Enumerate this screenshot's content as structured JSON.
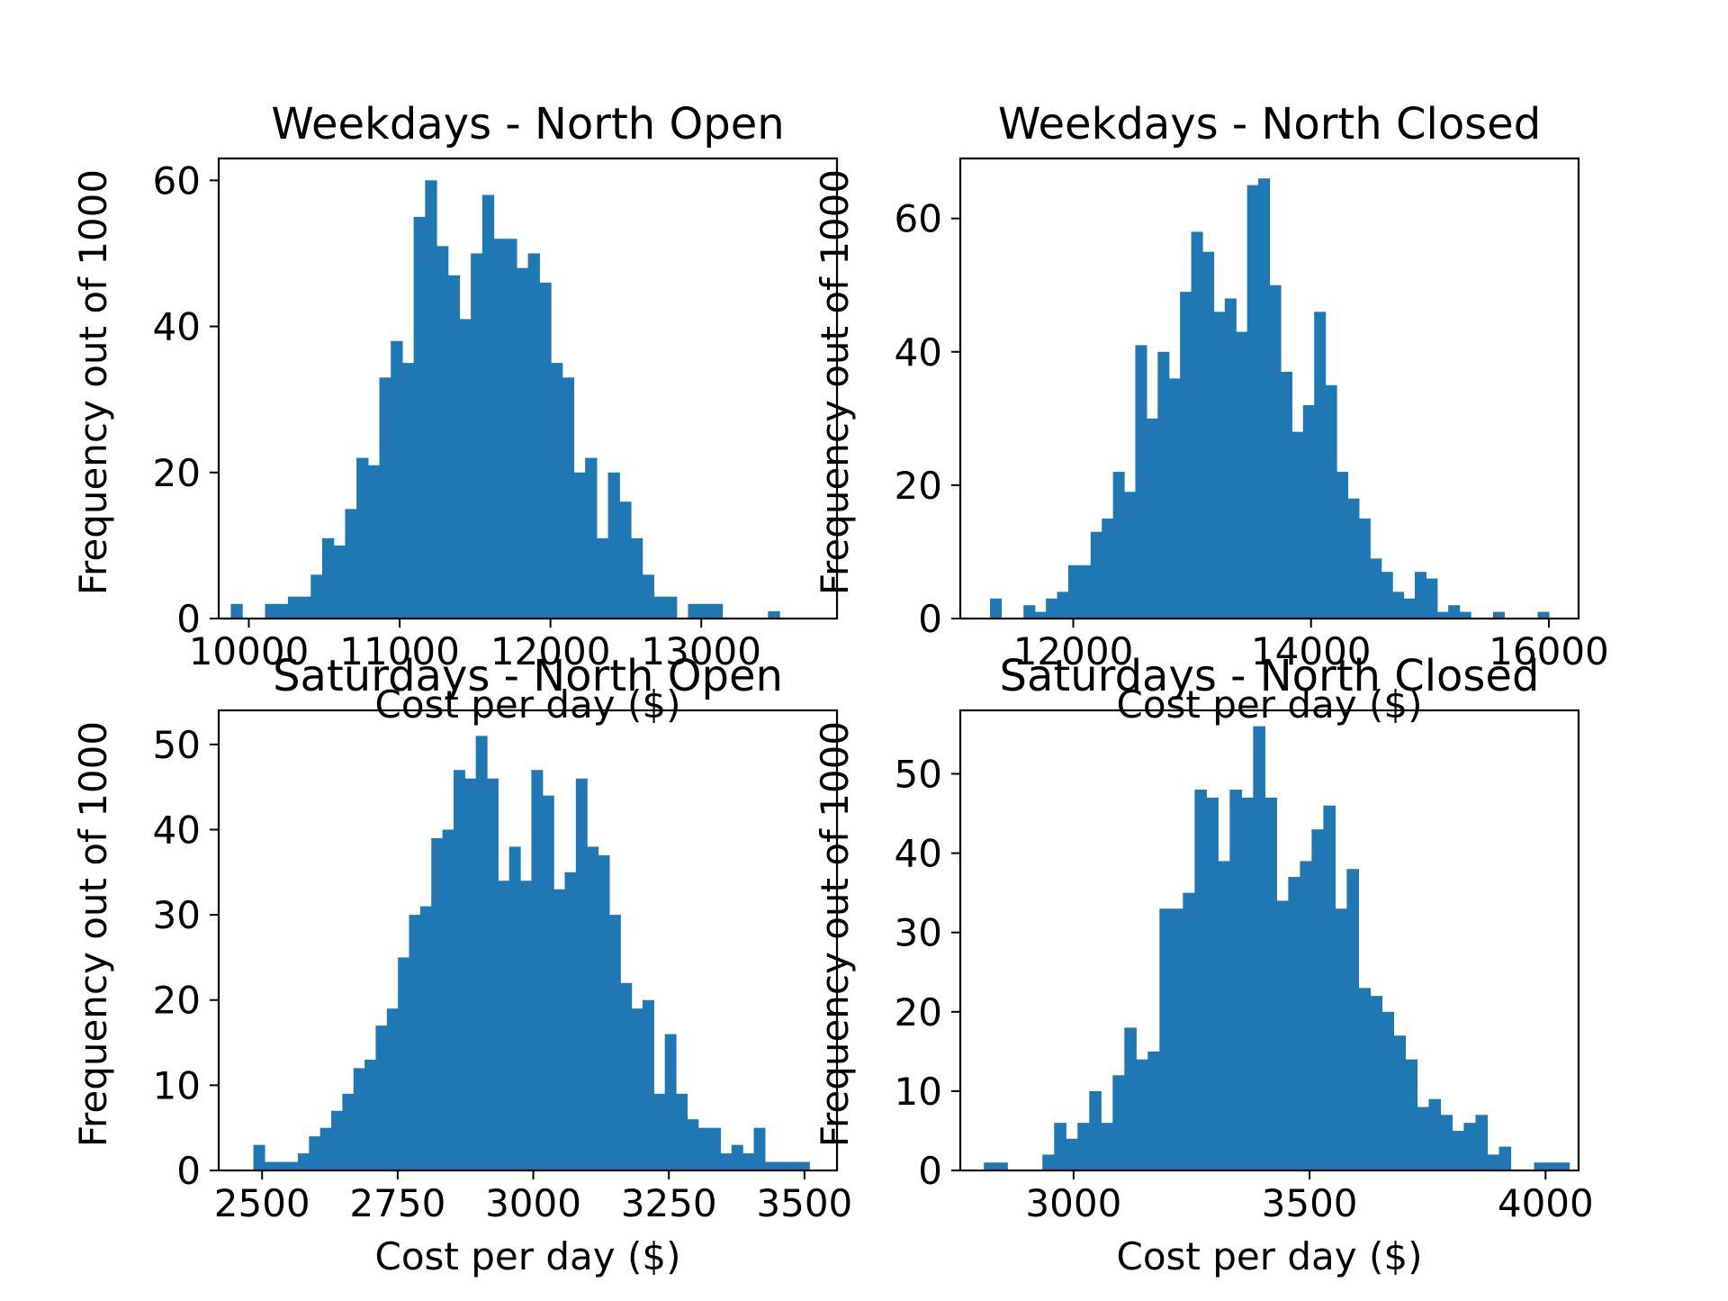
{
  "figure": {
    "background": "#ffffff",
    "bar_color": "#1f77b4"
  },
  "chart_data": [
    {
      "type": "bar",
      "title": "Weekdays - North Open",
      "xlabel": "Cost per day ($)",
      "ylabel": "Frequency out of 1000",
      "xlim": [
        9800,
        13900
      ],
      "ylim": [
        0,
        63
      ],
      "xticks": [
        10000,
        11000,
        12000,
        13000
      ],
      "yticks": [
        0,
        20,
        40,
        60
      ],
      "bin_start": 9880,
      "bin_width": 75.8,
      "values": [
        2,
        0,
        0,
        2,
        2,
        3,
        3,
        6,
        11,
        10,
        15,
        22,
        21,
        33,
        38,
        35,
        55,
        60,
        51,
        47,
        41,
        50,
        58,
        52,
        52,
        48,
        50,
        46,
        35,
        33,
        20,
        22,
        11,
        20,
        16,
        11,
        6,
        3,
        3,
        0,
        2,
        2,
        2,
        0,
        0,
        0,
        0,
        1
      ]
    },
    {
      "type": "bar",
      "title": "Weekdays - North Closed",
      "xlabel": "Cost per day ($)",
      "ylabel": "Frequency out of 1000",
      "xlim": [
        11050,
        16250
      ],
      "ylim": [
        0,
        69
      ],
      "xticks": [
        12000,
        14000,
        16000
      ],
      "yticks": [
        0,
        20,
        40,
        60
      ],
      "bin_start": 11300,
      "bin_width": 94,
      "values": [
        3,
        0,
        0,
        2,
        1,
        3,
        4,
        8,
        8,
        13,
        15,
        22,
        19,
        41,
        30,
        40,
        36,
        49,
        58,
        55,
        46,
        48,
        43,
        65,
        66,
        50,
        37,
        28,
        32,
        46,
        35,
        22,
        18,
        15,
        9,
        7,
        4,
        3,
        7,
        6,
        1,
        2,
        1,
        0,
        0,
        1,
        0,
        0,
        0,
        1
      ]
    },
    {
      "type": "bar",
      "title": "Saturdays - North Open",
      "xlabel": "Cost per day ($)",
      "ylabel": "Frequency out of 1000",
      "xlim": [
        2420,
        3560
      ],
      "ylim": [
        0,
        54
      ],
      "xticks": [
        2500,
        2750,
        3000,
        3250,
        3500
      ],
      "yticks": [
        0,
        10,
        20,
        30,
        40,
        50
      ],
      "bin_start": 2484,
      "bin_width": 20.5,
      "values": [
        3,
        1,
        1,
        1,
        2,
        4,
        5,
        7,
        9,
        12,
        13,
        17,
        19,
        25,
        30,
        31,
        39,
        40,
        47,
        46,
        51,
        46,
        34,
        38,
        34,
        47,
        44,
        33,
        35,
        46,
        38,
        37,
        30,
        22,
        19,
        20,
        9,
        16,
        9,
        6,
        5,
        5,
        2,
        3,
        2,
        5,
        1,
        1,
        1,
        1
      ]
    },
    {
      "type": "bar",
      "title": "Saturdays - North Closed",
      "xlabel": "Cost per day ($)",
      "ylabel": "Frequency out of 1000",
      "xlim": [
        2760,
        4070
      ],
      "ylim": [
        0,
        58
      ],
      "xticks": [
        3000,
        3500,
        4000
      ],
      "yticks": [
        0,
        10,
        20,
        30,
        40,
        50
      ],
      "bin_start": 2810,
      "bin_width": 24.8,
      "values": [
        1,
        1,
        0,
        0,
        0,
        2,
        6,
        4,
        6,
        10,
        6,
        12,
        18,
        14,
        15,
        33,
        33,
        35,
        48,
        47,
        39,
        48,
        47,
        56,
        47,
        34,
        37,
        39,
        43,
        46,
        33,
        38,
        23,
        22,
        20,
        17,
        14,
        8,
        9,
        7,
        5,
        6,
        7,
        2,
        3,
        0,
        0,
        1,
        1,
        1
      ]
    }
  ]
}
